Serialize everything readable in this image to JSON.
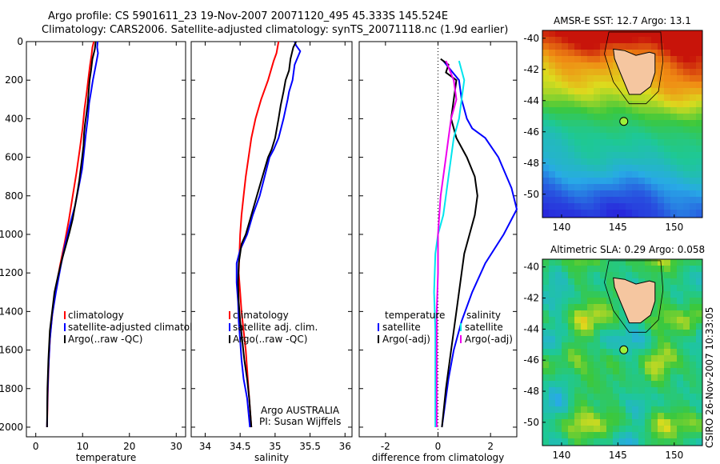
{
  "header": {
    "line1": "Argo profile: CS 5901611_23 19-Nov-2007 20071120_495 45.333S 145.524E",
    "line2": "Climatology: CARS2006. Satellite-adjusted climatology: synTS_20071118.nc (1.9d earlier)"
  },
  "side_label": "CSIRO 26-Nov-2007 10:33:05",
  "credit": {
    "line1": "Argo AUSTRALIA",
    "line2": "PI: Susan Wijffels"
  },
  "colors": {
    "climatology": "#ff0000",
    "satellite": "#0000ff",
    "argo": "#000000",
    "argo_adj_temp": "#00e5ee",
    "argo_adj_sal": "#ee00ee",
    "land": "#f5c6a0"
  },
  "chart_data": [
    {
      "type": "line",
      "name": "temperature-panel",
      "xlabel": "temperature",
      "xlim": [
        -2,
        32
      ],
      "ylim": [
        2050,
        0
      ],
      "xticks": [
        "0",
        "10",
        "20",
        "30"
      ],
      "yticks": [
        "0",
        "200",
        "400",
        "600",
        "800",
        "1000",
        "1200",
        "1400",
        "1600",
        "1800",
        "2000"
      ],
      "legend": [
        "climatology",
        "satellite-adjusted climatology",
        "Argo(..raw -QC)"
      ],
      "series": [
        {
          "name": "climatology",
          "color": "#ff0000",
          "points": [
            [
              12.4,
              0
            ],
            [
              12.1,
              30
            ],
            [
              11.9,
              70
            ],
            [
              11.6,
              120
            ],
            [
              11.3,
              180
            ],
            [
              10.9,
              260
            ],
            [
              10.4,
              350
            ],
            [
              10.0,
              450
            ],
            [
              9.4,
              560
            ],
            [
              8.7,
              680
            ],
            [
              7.9,
              800
            ],
            [
              7.1,
              920
            ],
            [
              6.2,
              1040
            ],
            [
              5.2,
              1160
            ],
            [
              4.3,
              1280
            ],
            [
              3.6,
              1400
            ],
            [
              3.1,
              1520
            ],
            [
              2.8,
              1650
            ],
            [
              2.6,
              1800
            ],
            [
              2.4,
              2000
            ]
          ]
        },
        {
          "name": "satellite",
          "color": "#0000ff",
          "points": [
            [
              13.2,
              0
            ],
            [
              13.1,
              30
            ],
            [
              13.3,
              60
            ],
            [
              13.0,
              100
            ],
            [
              12.6,
              150
            ],
            [
              12.2,
              200
            ],
            [
              11.8,
              260
            ],
            [
              11.4,
              320
            ],
            [
              11.1,
              400
            ],
            [
              10.7,
              480
            ],
            [
              10.3,
              570
            ],
            [
              9.9,
              660
            ],
            [
              9.2,
              750
            ],
            [
              8.4,
              850
            ],
            [
              7.3,
              950
            ],
            [
              6.2,
              1060
            ],
            [
              5.3,
              1170
            ],
            [
              4.3,
              1300
            ],
            [
              3.5,
              1420
            ],
            [
              3.0,
              1550
            ],
            [
              2.7,
              1700
            ],
            [
              2.5,
              1850
            ],
            [
              2.4,
              2000
            ]
          ]
        },
        {
          "name": "Argo(..raw -QC)",
          "color": "#000000",
          "points": [
            [
              12.8,
              0
            ],
            [
              12.6,
              40
            ],
            [
              12.1,
              90
            ],
            [
              11.8,
              150
            ],
            [
              11.5,
              200
            ],
            [
              11.3,
              260
            ],
            [
              11.1,
              320
            ],
            [
              10.8,
              380
            ],
            [
              10.5,
              430
            ],
            [
              10.3,
              480
            ],
            [
              10.2,
              540
            ],
            [
              9.9,
              600
            ],
            [
              9.6,
              660
            ],
            [
              9.3,
              720
            ],
            [
              8.9,
              780
            ],
            [
              8.4,
              850
            ],
            [
              7.9,
              920
            ],
            [
              7.2,
              990
            ],
            [
              6.4,
              1060
            ],
            [
              5.6,
              1130
            ],
            [
              4.8,
              1210
            ],
            [
              4.0,
              1300
            ],
            [
              3.5,
              1400
            ],
            [
              3.0,
              1500
            ],
            [
              2.7,
              1650
            ],
            [
              2.5,
              1800
            ],
            [
              2.4,
              2000
            ]
          ]
        }
      ]
    },
    {
      "type": "line",
      "name": "salinity-panel",
      "xlabel": "salinity",
      "xlim": [
        33.8,
        36.1
      ],
      "ylim": [
        2050,
        0
      ],
      "xticks": [
        "34",
        "34.5",
        "35",
        "35.5",
        "36"
      ],
      "legend": [
        "climatology",
        "satellite adj. clim.",
        "Argo(..raw -QC)"
      ],
      "series": [
        {
          "name": "climatology",
          "color": "#ff0000",
          "points": [
            [
              35.05,
              0
            ],
            [
              35.02,
              60
            ],
            [
              34.98,
              100
            ],
            [
              34.9,
              200
            ],
            [
              34.8,
              300
            ],
            [
              34.72,
              400
            ],
            [
              34.66,
              500
            ],
            [
              34.62,
              600
            ],
            [
              34.58,
              700
            ],
            [
              34.55,
              800
            ],
            [
              34.52,
              900
            ],
            [
              34.5,
              1000
            ],
            [
              34.49,
              1100
            ],
            [
              34.48,
              1200
            ],
            [
              34.5,
              1300
            ],
            [
              34.52,
              1400
            ],
            [
              34.55,
              1500
            ],
            [
              34.58,
              1600
            ],
            [
              34.6,
              1700
            ],
            [
              34.63,
              1850
            ],
            [
              34.66,
              2000
            ]
          ]
        },
        {
          "name": "satellite",
          "color": "#0000ff",
          "points": [
            [
              35.28,
              0
            ],
            [
              35.3,
              20
            ],
            [
              35.36,
              50
            ],
            [
              35.28,
              120
            ],
            [
              35.25,
              200
            ],
            [
              35.2,
              260
            ],
            [
              35.18,
              300
            ],
            [
              35.12,
              400
            ],
            [
              35.05,
              500
            ],
            [
              34.98,
              560
            ],
            [
              34.92,
              600
            ],
            [
              34.85,
              700
            ],
            [
              34.78,
              800
            ],
            [
              34.68,
              900
            ],
            [
              34.6,
              1000
            ],
            [
              34.5,
              1080
            ],
            [
              34.45,
              1150
            ],
            [
              34.45,
              1250
            ],
            [
              34.47,
              1350
            ],
            [
              34.48,
              1450
            ],
            [
              34.5,
              1550
            ],
            [
              34.52,
              1650
            ],
            [
              34.55,
              1750
            ],
            [
              34.6,
              1850
            ],
            [
              34.64,
              2000
            ]
          ]
        },
        {
          "name": "Argo(..raw -QC)",
          "color": "#000000",
          "points": [
            [
              35.3,
              0
            ],
            [
              35.26,
              30
            ],
            [
              35.22,
              90
            ],
            [
              35.2,
              150
            ],
            [
              35.15,
              200
            ],
            [
              35.12,
              260
            ],
            [
              35.08,
              330
            ],
            [
              35.05,
              400
            ],
            [
              35.0,
              500
            ],
            [
              34.95,
              560
            ],
            [
              34.9,
              600
            ],
            [
              34.82,
              700
            ],
            [
              34.74,
              800
            ],
            [
              34.66,
              900
            ],
            [
              34.58,
              1000
            ],
            [
              34.52,
              1050
            ],
            [
              34.5,
              1100
            ],
            [
              34.48,
              1150
            ],
            [
              34.47,
              1250
            ],
            [
              34.48,
              1350
            ],
            [
              34.5,
              1450
            ],
            [
              34.53,
              1550
            ],
            [
              34.56,
              1650
            ],
            [
              34.6,
              1750
            ],
            [
              34.63,
              1850
            ],
            [
              34.66,
              2000
            ]
          ]
        }
      ]
    },
    {
      "type": "line",
      "name": "difference-panel",
      "xlabel": "difference from climatology",
      "xlim": [
        -3,
        3
      ],
      "ylim": [
        2050,
        0
      ],
      "xticks": [
        "-2",
        "0",
        "2"
      ],
      "legend_left": [
        "temperature",
        "satellite",
        "Argo(-adj)"
      ],
      "legend_right": [
        "salinity",
        "satellite",
        "Argo(-adj)"
      ],
      "series": [
        {
          "name": "temperature satellite",
          "color": "#0000ff",
          "points": [
            [
              0.2,
              100
            ],
            [
              0.8,
              200
            ],
            [
              0.9,
              300
            ],
            [
              1.1,
              400
            ],
            [
              1.3,
              450
            ],
            [
              1.8,
              500
            ],
            [
              2.3,
              600
            ],
            [
              2.8,
              760
            ],
            [
              3.0,
              870
            ],
            [
              2.5,
              1000
            ],
            [
              1.8,
              1150
            ],
            [
              1.3,
              1300
            ],
            [
              0.9,
              1450
            ],
            [
              0.6,
              1600
            ],
            [
              0.4,
              1750
            ],
            [
              0.25,
              1900
            ],
            [
              0.15,
              2000
            ]
          ]
        },
        {
          "name": "temperature Argo(-adj)",
          "color": "#000000",
          "points": [
            [
              0.1,
              90
            ],
            [
              0.4,
              120
            ],
            [
              0.3,
              160
            ],
            [
              0.7,
              200
            ],
            [
              0.6,
              300
            ],
            [
              0.5,
              400
            ],
            [
              0.7,
              500
            ],
            [
              1.1,
              600
            ],
            [
              1.4,
              700
            ],
            [
              1.5,
              800
            ],
            [
              1.4,
              900
            ],
            [
              1.2,
              1000
            ],
            [
              1.0,
              1100
            ],
            [
              0.9,
              1200
            ],
            [
              0.7,
              1400
            ],
            [
              0.5,
              1600
            ],
            [
              0.3,
              1800
            ],
            [
              0.15,
              2000
            ]
          ]
        },
        {
          "name": "salinity satellite",
          "color": "#00e5ee",
          "points": [
            [
              0.8,
              100
            ],
            [
              1.0,
              200
            ],
            [
              0.9,
              300
            ],
            [
              0.8,
              400
            ],
            [
              0.6,
              500
            ],
            [
              0.5,
              600
            ],
            [
              0.4,
              700
            ],
            [
              0.3,
              800
            ],
            [
              0.2,
              900
            ],
            [
              0.0,
              1000
            ],
            [
              -0.1,
              1100
            ],
            [
              -0.15,
              1300
            ],
            [
              -0.1,
              1500
            ],
            [
              -0.1,
              1700
            ],
            [
              -0.1,
              1900
            ],
            [
              -0.1,
              2000
            ]
          ]
        },
        {
          "name": "salinity Argo(-adj)",
          "color": "#ee00ee",
          "points": [
            [
              0.3,
              100
            ],
            [
              0.6,
              200
            ],
            [
              0.7,
              300
            ],
            [
              0.5,
              400
            ],
            [
              0.4,
              500
            ],
            [
              0.3,
              600
            ],
            [
              0.2,
              700
            ],
            [
              0.1,
              800
            ],
            [
              0.05,
              900
            ],
            [
              0.0,
              1000
            ],
            [
              0.0,
              1100
            ],
            [
              0.0,
              1200
            ],
            [
              -0.05,
              1400
            ],
            [
              -0.05,
              1600
            ],
            [
              -0.05,
              1800
            ],
            [
              -0.05,
              2000
            ]
          ]
        }
      ]
    },
    {
      "type": "heatmap",
      "name": "sst-map",
      "title": "AMSR-E SST: 12.7 Argo: 13.1",
      "xticks": [
        "140",
        "145",
        "150"
      ],
      "yticks": [
        "-40",
        "-42",
        "-44",
        "-46",
        "-48",
        "-50"
      ],
      "xlim": [
        138.3,
        152.5
      ],
      "ylim": [
        -51.5,
        -39.5
      ],
      "argo_position": [
        145.524,
        -45.333
      ]
    },
    {
      "type": "heatmap",
      "name": "sla-map",
      "title": "Altimetric SLA: 0.29 Argo: 0.058",
      "xticks": [
        "140",
        "145",
        "150"
      ],
      "yticks": [
        "-40",
        "-42",
        "-44",
        "-46",
        "-48",
        "-50"
      ],
      "xlim": [
        138.3,
        152.5
      ],
      "ylim": [
        -51.5,
        -39.5
      ],
      "argo_position": [
        145.524,
        -45.333
      ]
    }
  ]
}
